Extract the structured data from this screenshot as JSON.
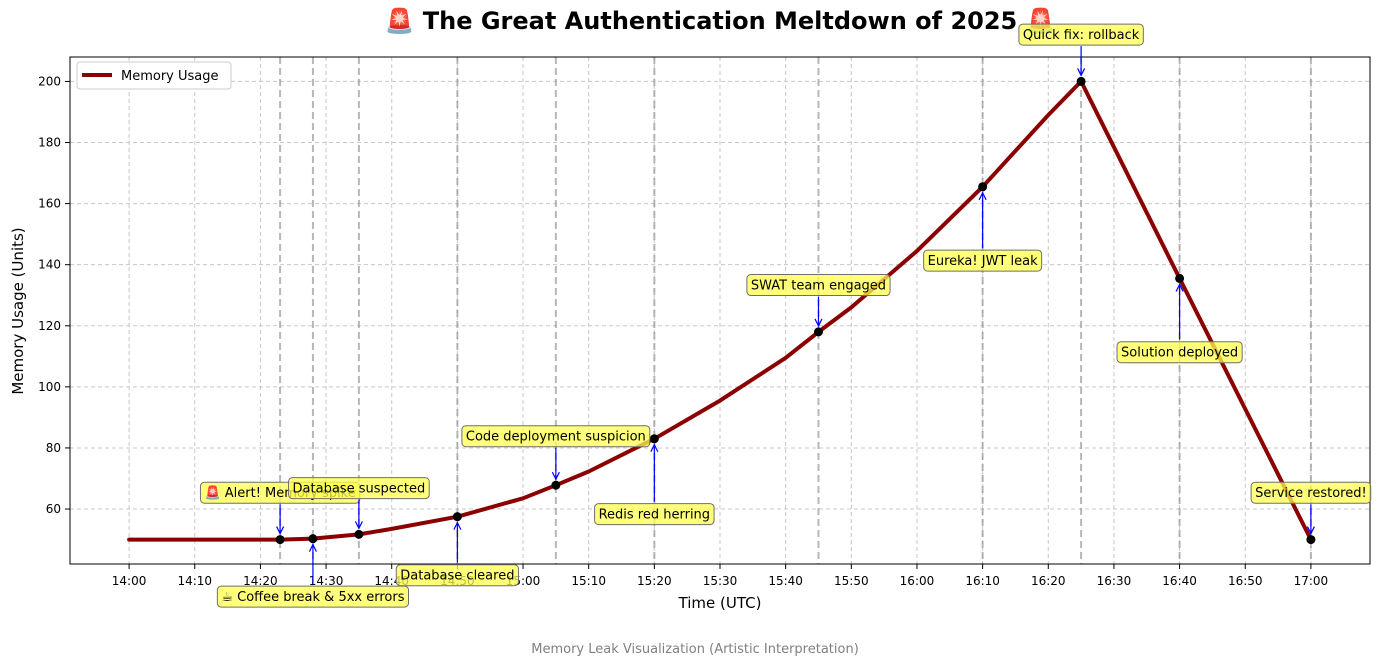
{
  "chart_data": {
    "type": "line",
    "title": "🚨 The Great Authentication Meltdown of 2025 🚨",
    "xlabel": "Time (UTC)",
    "ylabel": "Memory Usage (Units)",
    "caption": "Memory Leak Visualization (Artistic Interpretation)",
    "x_ticks": [
      "14:00",
      "14:10",
      "14:20",
      "14:30",
      "14:40",
      "14:50",
      "15:00",
      "15:10",
      "15:20",
      "15:30",
      "15:40",
      "15:50",
      "16:00",
      "16:10",
      "16:20",
      "16:30",
      "16:40",
      "16:50",
      "17:00"
    ],
    "y_ticks": [
      60,
      80,
      100,
      120,
      140,
      160,
      180,
      200
    ],
    "xlim": [
      "13:51",
      "17:09"
    ],
    "ylim": [
      42,
      208
    ],
    "grid": true,
    "legend": {
      "placement": "top-left",
      "entries": [
        "Memory Usage"
      ]
    },
    "series": [
      {
        "name": "Memory Usage",
        "color": "#8b0000",
        "points": [
          {
            "x": "14:00",
            "y": 50
          },
          {
            "x": "14:23",
            "y": 50
          },
          {
            "x": "14:28",
            "y": 50.3
          },
          {
            "x": "14:35",
            "y": 51.7
          },
          {
            "x": "14:40",
            "y": 53.5
          },
          {
            "x": "14:50",
            "y": 57.5
          },
          {
            "x": "15:00",
            "y": 63.5
          },
          {
            "x": "15:05",
            "y": 67.8
          },
          {
            "x": "15:10",
            "y": 72.3
          },
          {
            "x": "15:20",
            "y": 83
          },
          {
            "x": "15:30",
            "y": 95.5
          },
          {
            "x": "15:40",
            "y": 109.5
          },
          {
            "x": "15:45",
            "y": 118
          },
          {
            "x": "15:50",
            "y": 126
          },
          {
            "x": "16:00",
            "y": 144.5
          },
          {
            "x": "16:10",
            "y": 165.5
          },
          {
            "x": "16:20",
            "y": 189
          },
          {
            "x": "16:25",
            "y": 200
          },
          {
            "x": "16:40",
            "y": 135.5
          },
          {
            "x": "17:00",
            "y": 50
          }
        ]
      }
    ],
    "markers": [
      {
        "x": "14:23",
        "y": 50
      },
      {
        "x": "14:28",
        "y": 50.3
      },
      {
        "x": "14:35",
        "y": 51.7
      },
      {
        "x": "14:50",
        "y": 57.5
      },
      {
        "x": "15:05",
        "y": 67.8
      },
      {
        "x": "15:20",
        "y": 83
      },
      {
        "x": "15:45",
        "y": 118
      },
      {
        "x": "16:10",
        "y": 165.5
      },
      {
        "x": "16:25",
        "y": 200
      },
      {
        "x": "16:40",
        "y": 135.5
      },
      {
        "x": "17:00",
        "y": 50
      }
    ],
    "event_lines": [
      "14:23",
      "14:28",
      "14:35",
      "14:50",
      "15:05",
      "15:20",
      "15:45",
      "16:10",
      "16:25",
      "16:40",
      "17:00"
    ],
    "annotations": [
      {
        "text": "🚨 Alert! Memory spike",
        "x": "14:23",
        "y": 50,
        "label_y": 65.5
      },
      {
        "text": "☕ Coffee break & 5xx errors",
        "x": "14:28",
        "y": 50.3,
        "label_y": 31.5
      },
      {
        "text": "Database suspected",
        "x": "14:35",
        "y": 51.7,
        "label_y": 67
      },
      {
        "text": "Database cleared",
        "x": "14:50",
        "y": 57.5,
        "label_y": 38.5
      },
      {
        "text": "Code deployment suspicion",
        "x": "15:05",
        "y": 67.8,
        "label_y": 84
      },
      {
        "text": "Redis red herring",
        "x": "15:20",
        "y": 83,
        "label_y": 58.5
      },
      {
        "text": "SWAT team engaged",
        "x": "15:45",
        "y": 118,
        "label_y": 133.5
      },
      {
        "text": "Eureka! JWT leak",
        "x": "16:10",
        "y": 165.5,
        "label_y": 141.5
      },
      {
        "text": "Quick fix: rollback",
        "x": "16:25",
        "y": 200,
        "label_y": 215.5
      },
      {
        "text": "Solution deployed",
        "x": "16:40",
        "y": 135.5,
        "label_y": 111.5
      },
      {
        "text": "Service restored!",
        "x": "17:00",
        "y": 50,
        "label_y": 65.5
      }
    ]
  }
}
